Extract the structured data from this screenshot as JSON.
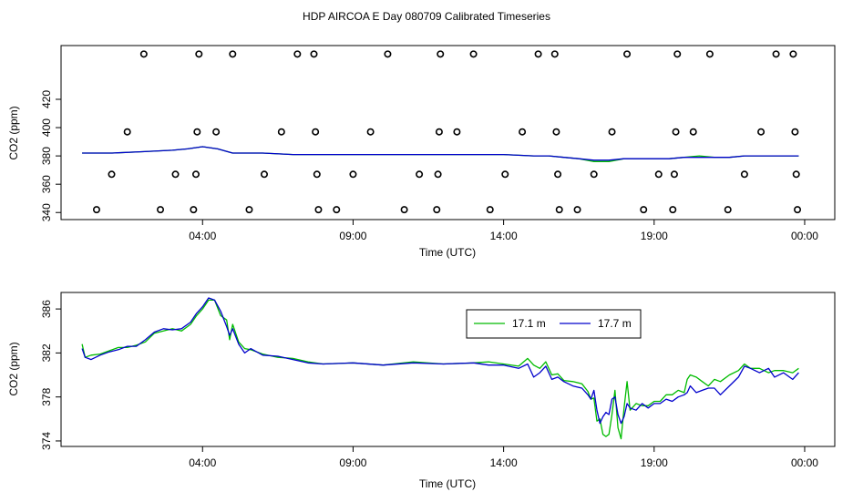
{
  "title": "HDP AIRCOA E  Day 080709  Calibrated Timeseries",
  "colors": {
    "green": "#00bb00",
    "blue": "#0000cc",
    "black": "#000000"
  },
  "chart_data": [
    {
      "type": "scatter",
      "xlabel": "Time (UTC)",
      "ylabel": "CO2 (ppm)",
      "x_unit": "hours since 00:00 UTC",
      "xlim": [
        -0.7,
        25.0
      ],
      "ylim": [
        335,
        458
      ],
      "x_ticks": [
        4,
        9,
        14,
        19,
        24
      ],
      "x_tick_labels": [
        "04:00",
        "09:00",
        "14:00",
        "19:00",
        "00:00"
      ],
      "y_ticks": [
        340,
        360,
        380,
        400,
        420
      ],
      "y_tick_labels": [
        "340",
        "360",
        "380",
        "400",
        "420"
      ],
      "legend": null,
      "calibration_points": [
        {
          "x": 0.48,
          "y": 342
        },
        {
          "x": 0.98,
          "y": 367
        },
        {
          "x": 1.5,
          "y": 397
        },
        {
          "x": 2.05,
          "y": 452
        },
        {
          "x": 2.6,
          "y": 342
        },
        {
          "x": 3.1,
          "y": 367
        },
        {
          "x": 3.7,
          "y": 342
        },
        {
          "x": 3.78,
          "y": 367
        },
        {
          "x": 3.82,
          "y": 397
        },
        {
          "x": 3.88,
          "y": 452
        },
        {
          "x": 4.45,
          "y": 397
        },
        {
          "x": 5.0,
          "y": 452
        },
        {
          "x": 5.55,
          "y": 342
        },
        {
          "x": 6.05,
          "y": 367
        },
        {
          "x": 6.62,
          "y": 397
        },
        {
          "x": 7.15,
          "y": 452
        },
        {
          "x": 7.7,
          "y": 452
        },
        {
          "x": 7.75,
          "y": 397
        },
        {
          "x": 7.8,
          "y": 367
        },
        {
          "x": 7.85,
          "y": 342
        },
        {
          "x": 8.45,
          "y": 342
        },
        {
          "x": 9.0,
          "y": 367
        },
        {
          "x": 9.58,
          "y": 397
        },
        {
          "x": 10.15,
          "y": 452
        },
        {
          "x": 10.7,
          "y": 342
        },
        {
          "x": 11.2,
          "y": 367
        },
        {
          "x": 11.78,
          "y": 342
        },
        {
          "x": 11.82,
          "y": 367
        },
        {
          "x": 11.86,
          "y": 397
        },
        {
          "x": 11.9,
          "y": 452
        },
        {
          "x": 12.45,
          "y": 397
        },
        {
          "x": 13.0,
          "y": 452
        },
        {
          "x": 13.55,
          "y": 342
        },
        {
          "x": 14.05,
          "y": 367
        },
        {
          "x": 14.62,
          "y": 397
        },
        {
          "x": 15.15,
          "y": 452
        },
        {
          "x": 15.7,
          "y": 452
        },
        {
          "x": 15.75,
          "y": 397
        },
        {
          "x": 15.8,
          "y": 367
        },
        {
          "x": 15.85,
          "y": 342
        },
        {
          "x": 16.45,
          "y": 342
        },
        {
          "x": 17.0,
          "y": 367
        },
        {
          "x": 17.6,
          "y": 397
        },
        {
          "x": 18.1,
          "y": 452
        },
        {
          "x": 18.65,
          "y": 342
        },
        {
          "x": 19.15,
          "y": 367
        },
        {
          "x": 19.62,
          "y": 342
        },
        {
          "x": 19.67,
          "y": 367
        },
        {
          "x": 19.72,
          "y": 397
        },
        {
          "x": 19.77,
          "y": 452
        },
        {
          "x": 20.3,
          "y": 397
        },
        {
          "x": 20.85,
          "y": 452
        },
        {
          "x": 21.45,
          "y": 342
        },
        {
          "x": 22.0,
          "y": 367
        },
        {
          "x": 22.55,
          "y": 397
        },
        {
          "x": 23.05,
          "y": 452
        },
        {
          "x": 23.62,
          "y": 452
        },
        {
          "x": 23.68,
          "y": 397
        },
        {
          "x": 23.72,
          "y": 367
        },
        {
          "x": 23.76,
          "y": 342
        }
      ],
      "series": [
        {
          "name": "17.1 m",
          "color": "#00bb00",
          "x": [
            0,
            1,
            2,
            3,
            3.5,
            4,
            4.5,
            5,
            6,
            7,
            8,
            9,
            10,
            11,
            12,
            13,
            14,
            15,
            15.5,
            16,
            16.5,
            17,
            17.5,
            18,
            18.5,
            19,
            19.5,
            20,
            20.5,
            21,
            21.5,
            22,
            22.5,
            23,
            23.8
          ],
          "y": [
            382,
            382,
            383,
            384,
            385,
            386.5,
            385,
            382,
            382,
            381,
            381,
            381,
            381,
            381,
            381,
            381,
            381,
            380,
            380,
            379,
            378,
            376,
            376,
            378,
            378,
            378,
            378,
            379,
            380,
            379,
            379,
            380,
            380,
            380,
            380
          ]
        },
        {
          "name": "17.7 m",
          "color": "#0000cc",
          "x": [
            0,
            1,
            2,
            3,
            3.5,
            4,
            4.5,
            5,
            6,
            7,
            8,
            9,
            10,
            11,
            12,
            13,
            14,
            15,
            15.5,
            16,
            16.5,
            17,
            17.5,
            18,
            18.5,
            19,
            19.5,
            20,
            20.5,
            21,
            21.5,
            22,
            22.5,
            23,
            23.8
          ],
          "y": [
            382,
            382,
            383,
            384,
            385,
            386.5,
            385,
            382,
            382,
            381,
            381,
            381,
            381,
            381,
            381,
            381,
            381,
            380,
            380,
            379,
            378,
            377,
            377,
            378,
            378,
            378,
            378,
            379,
            379,
            379,
            379,
            380,
            380,
            380,
            380
          ]
        }
      ]
    },
    {
      "type": "line",
      "xlabel": "Time (UTC)",
      "ylabel": "CO2 (ppm)",
      "x_unit": "hours since 00:00 UTC",
      "xlim": [
        -0.7,
        25.0
      ],
      "ylim": [
        373.5,
        387.5
      ],
      "x_ticks": [
        4,
        9,
        14,
        19,
        24
      ],
      "x_tick_labels": [
        "04:00",
        "09:00",
        "14:00",
        "19:00",
        "00:00"
      ],
      "y_ticks": [
        374,
        378,
        382,
        386
      ],
      "y_tick_labels": [
        "374",
        "378",
        "382",
        "386"
      ],
      "legend": "top-right",
      "series": [
        {
          "name": "17.1 m",
          "color": "#00bb00",
          "x": [
            0,
            0.1,
            0.3,
            0.6,
            0.9,
            1.2,
            1.5,
            1.8,
            2.1,
            2.4,
            2.7,
            3.0,
            3.3,
            3.6,
            3.8,
            4.0,
            4.2,
            4.4,
            4.6,
            4.8,
            4.9,
            5.0,
            5.2,
            5.4,
            5.6,
            6.0,
            6.5,
            7.0,
            7.5,
            8.0,
            9.0,
            10.0,
            11.0,
            12.0,
            13.0,
            13.5,
            14.0,
            14.5,
            14.8,
            15.0,
            15.2,
            15.4,
            15.6,
            15.8,
            16.0,
            16.3,
            16.6,
            16.8,
            16.9,
            17.0,
            17.1,
            17.2,
            17.3,
            17.4,
            17.5,
            17.6,
            17.7,
            17.8,
            17.9,
            18.0,
            18.1,
            18.2,
            18.4,
            18.6,
            18.8,
            19.0,
            19.2,
            19.4,
            19.6,
            19.8,
            20.0,
            20.1,
            20.2,
            20.4,
            20.6,
            20.8,
            21.0,
            21.2,
            21.5,
            21.8,
            22.0,
            22.2,
            22.5,
            22.8,
            23.0,
            23.3,
            23.6,
            23.8
          ],
          "y": [
            382.8,
            381.6,
            381.8,
            381.9,
            382.2,
            382.5,
            382.5,
            382.7,
            383.0,
            383.8,
            384.0,
            384.2,
            384.0,
            384.6,
            385.4,
            386.0,
            386.8,
            386.8,
            385.4,
            385.0,
            383.2,
            384.6,
            383.0,
            382.4,
            382.3,
            381.9,
            381.6,
            381.5,
            381.2,
            381.0,
            381.1,
            380.9,
            381.2,
            381.0,
            381.1,
            381.2,
            381.0,
            380.8,
            381.5,
            380.9,
            380.6,
            381.2,
            380.0,
            380.1,
            379.5,
            379.4,
            379.2,
            378.5,
            377.8,
            377.9,
            375.8,
            376.0,
            374.6,
            374.4,
            374.6,
            376.4,
            378.6,
            375.2,
            374.2,
            377.0,
            379.4,
            376.8,
            377.4,
            377.2,
            377.2,
            377.6,
            377.6,
            378.2,
            378.2,
            378.6,
            378.4,
            379.6,
            380.0,
            379.8,
            379.4,
            379.0,
            379.6,
            379.4,
            380.0,
            380.4,
            381.0,
            380.6,
            380.6,
            380.2,
            380.4,
            380.4,
            380.2,
            380.6
          ]
        },
        {
          "name": "17.7 m",
          "color": "#0000cc",
          "x": [
            0,
            0.1,
            0.3,
            0.6,
            0.9,
            1.2,
            1.5,
            1.8,
            2.1,
            2.4,
            2.7,
            3.0,
            3.3,
            3.6,
            3.8,
            4.0,
            4.2,
            4.4,
            4.6,
            4.8,
            4.9,
            5.0,
            5.2,
            5.4,
            5.6,
            6.0,
            6.5,
            7.0,
            7.5,
            8.0,
            9.0,
            10.0,
            11.0,
            12.0,
            13.0,
            13.5,
            14.0,
            14.5,
            14.8,
            15.0,
            15.2,
            15.4,
            15.6,
            15.8,
            16.0,
            16.3,
            16.6,
            16.8,
            16.9,
            17.0,
            17.1,
            17.2,
            17.3,
            17.4,
            17.5,
            17.6,
            17.7,
            17.8,
            17.9,
            18.0,
            18.1,
            18.2,
            18.4,
            18.6,
            18.8,
            19.0,
            19.2,
            19.4,
            19.6,
            19.8,
            20.0,
            20.1,
            20.2,
            20.4,
            20.6,
            20.8,
            21.0,
            21.2,
            21.5,
            21.8,
            22.0,
            22.2,
            22.5,
            22.8,
            23.0,
            23.3,
            23.6,
            23.8
          ],
          "y": [
            382.4,
            381.6,
            381.4,
            381.8,
            382.1,
            382.3,
            382.6,
            382.6,
            383.2,
            383.9,
            384.2,
            384.1,
            384.2,
            384.8,
            385.6,
            386.2,
            387.0,
            386.8,
            385.8,
            384.4,
            383.6,
            384.2,
            382.8,
            382.0,
            382.4,
            381.8,
            381.7,
            381.4,
            381.1,
            381.0,
            381.1,
            380.9,
            381.1,
            381.0,
            381.1,
            380.9,
            380.9,
            380.6,
            381.0,
            379.8,
            380.2,
            380.8,
            379.6,
            379.8,
            379.4,
            379.0,
            378.8,
            378.2,
            377.8,
            378.6,
            376.8,
            375.6,
            376.2,
            376.6,
            376.4,
            377.8,
            378.0,
            376.4,
            375.6,
            376.2,
            377.4,
            377.0,
            376.8,
            377.4,
            377.0,
            377.4,
            377.4,
            377.8,
            377.6,
            378.0,
            378.2,
            378.4,
            379.0,
            378.4,
            378.6,
            378.8,
            378.8,
            378.2,
            379.0,
            379.8,
            380.8,
            380.6,
            380.2,
            380.6,
            379.8,
            380.2,
            379.6,
            380.2
          ]
        }
      ]
    }
  ]
}
